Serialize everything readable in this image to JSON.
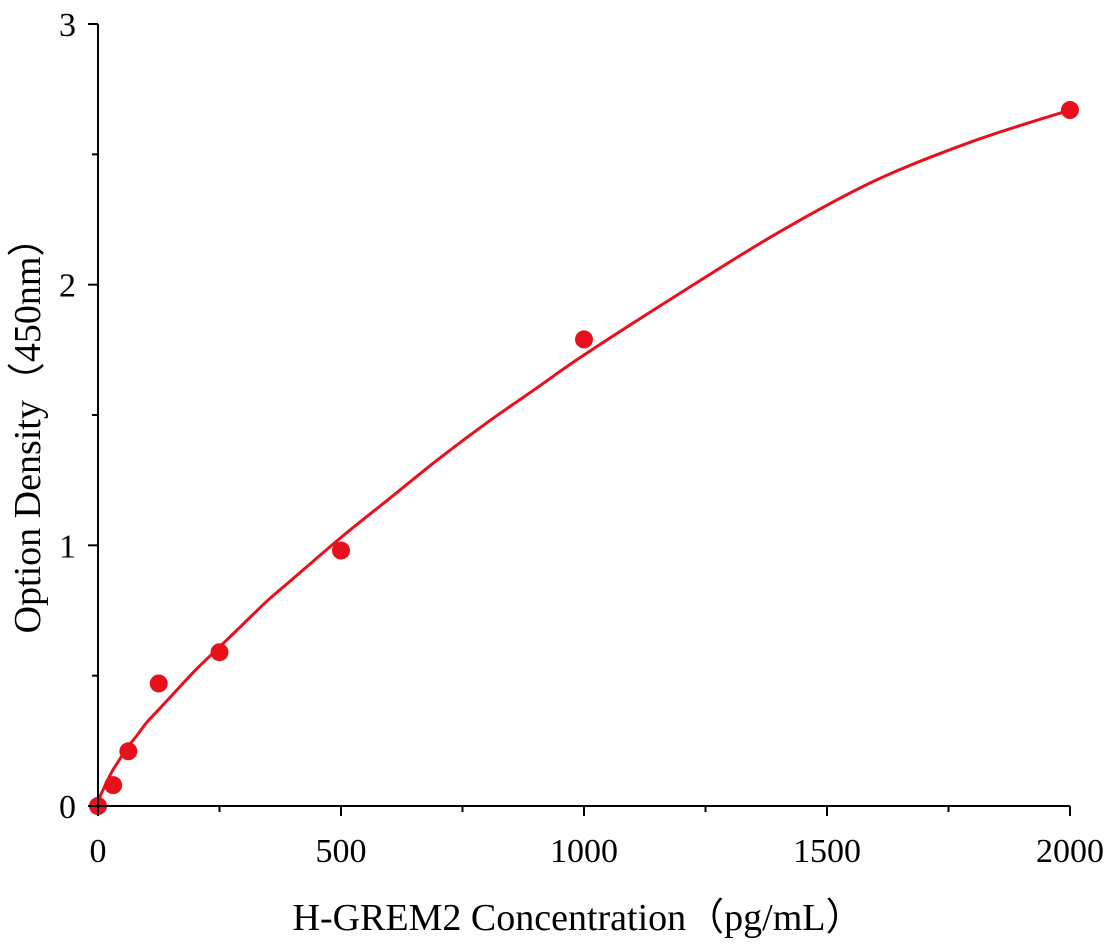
{
  "chart_data": {
    "type": "scatter",
    "xlabel": "H-GREM2 Concentration（pg/mL）",
    "ylabel": "Option Density（450nm）",
    "xlim": [
      0,
      2000
    ],
    "ylim": [
      0,
      3
    ],
    "x_ticks": [
      {
        "value": 0,
        "label": "0"
      },
      {
        "value": 500,
        "label": "500"
      },
      {
        "value": 1000,
        "label": "1000"
      },
      {
        "value": 1500,
        "label": "1500"
      },
      {
        "value": 2000,
        "label": "2000"
      }
    ],
    "y_ticks": [
      {
        "value": 0,
        "label": "0"
      },
      {
        "value": 1,
        "label": "1"
      },
      {
        "value": 2,
        "label": "2"
      },
      {
        "value": 3,
        "label": "3"
      }
    ],
    "x_minor_step": 250,
    "y_minor_step": 0.5,
    "grid": false,
    "series": [
      {
        "points": [
          {
            "x": 0,
            "y": 0.0
          },
          {
            "x": 31.25,
            "y": 0.08
          },
          {
            "x": 62.5,
            "y": 0.21
          },
          {
            "x": 125,
            "y": 0.47
          },
          {
            "x": 250,
            "y": 0.59
          },
          {
            "x": 500,
            "y": 0.98
          },
          {
            "x": 1000,
            "y": 1.79
          },
          {
            "x": 2000,
            "y": 2.67
          }
        ],
        "color": "#e8101a",
        "fit": {
          "type": "curve",
          "x": [
            0,
            5,
            10,
            20,
            31.25,
            45,
            62.5,
            80,
            100,
            125,
            150,
            200,
            250,
            300,
            350,
            400,
            500,
            600,
            700,
            800,
            900,
            1000,
            1200,
            1400,
            1600,
            1800,
            2000
          ],
          "y": [
            0.0,
            0.04,
            0.06,
            0.1,
            0.14,
            0.18,
            0.23,
            0.27,
            0.32,
            0.37,
            0.42,
            0.52,
            0.61,
            0.7,
            0.79,
            0.87,
            1.03,
            1.18,
            1.33,
            1.47,
            1.6,
            1.73,
            1.97,
            2.2,
            2.4,
            2.55,
            2.67
          ],
          "color": "#e8101a"
        }
      }
    ]
  }
}
